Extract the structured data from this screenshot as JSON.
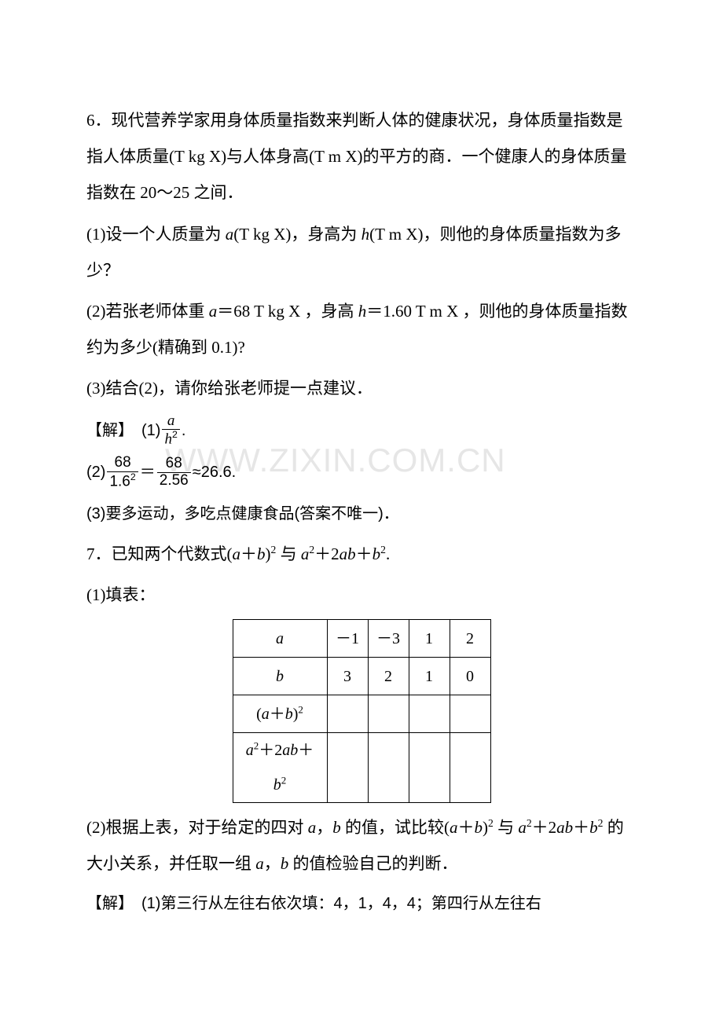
{
  "watermark": "WWW.ZIXIN.COM.CN",
  "q6": {
    "p1": "6．现代营养学家用身体质量指数来判断人体的健康状况，身体质量指数是指人体质量(T kg X)与人体身高(T m X)的平方的商．一个健康人的身体质量指数在 20～25 之间．",
    "p2_a": "(1)设一个人质量为 ",
    "p2_b": "(T kg X)，身高为 ",
    "p2_c": "(T m X)，则他的身体质量指数为多少？",
    "p3_a": "(2)若张老师体重 ",
    "p3_b": "＝68 T  kg X ，身高 ",
    "p3_c": "＝1.60  T m X ，则他的身体质量指数约为多少(精确到 0.1)?",
    "p4": "(3)结合(2)，请你给张老师提一点建议．",
    "sol_label": "【解】",
    "sol1_prefix": "(1)",
    "frac_a": "a",
    "frac_h2_h": "h",
    "sol2_prefix": "(2)",
    "f1_num": "68",
    "f1_den": "1.6",
    "eq": "＝",
    "f2_num": "68",
    "f2_den": "2.56",
    "approx": "≈26.6.",
    "sol3": "(3)要多运动，多吃点健康食品(答案不唯一)．"
  },
  "q7": {
    "p1_a": "7．已知两个代数式(",
    "p1_b": "＋",
    "p1_c": ")",
    "p1_d": " 与 ",
    "p1_e": "＋2",
    "p1_f": "＋",
    "p1_g": ".",
    "p2": "(1)填表：",
    "table": {
      "r1": [
        "a",
        "－1",
        "－3",
        "1",
        "2"
      ],
      "r2": [
        "b",
        "3",
        "2",
        "1",
        "0"
      ]
    },
    "expr1_open": "(",
    "expr1_plus": "＋",
    "expr1_close": ")",
    "expr2_plus1": "＋2",
    "expr2_plus2": "＋",
    "p3_a": "(2)根据上表，对于给定的四对 ",
    "p3_b": "，",
    "p3_c": " 的值，试比较(",
    "p3_d": "＋",
    "p3_e": ")",
    "p3_f": " 与 ",
    "p3_g": "＋2",
    "p3_h": "＋",
    "p3_i": " 的大小关系，并任取一组 ",
    "p3_j": "，",
    "p3_k": " 的值检验自己的判断．",
    "sol": "(1)第三行从左往右依次填：4，1，4，4；第四行从左往右"
  },
  "vars": {
    "a": "a",
    "b": "b",
    "h": "h",
    "two": "2"
  }
}
